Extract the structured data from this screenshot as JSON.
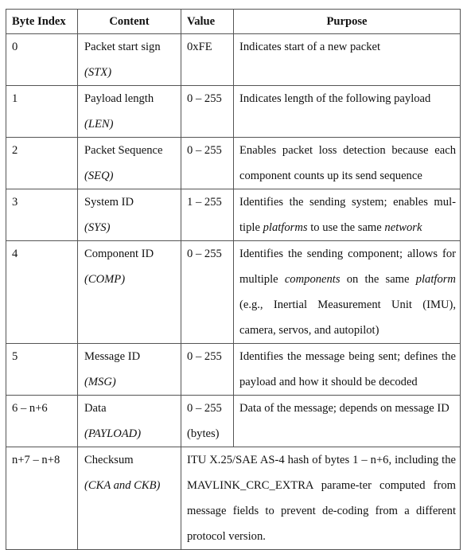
{
  "headers": {
    "byte_index": "Byte Index",
    "content": "Content",
    "value": "Value",
    "purpose": "Purpose"
  },
  "rows": [
    {
      "index": "0",
      "content": "Packet start sign",
      "abbr": "(STX)",
      "value": "0xFE",
      "value2": "",
      "purpose_parts": [
        "Indicates start of a new packet"
      ]
    },
    {
      "index": "1",
      "content": "Payload length",
      "abbr": "(LEN)",
      "value": "0 – 255",
      "value2": "",
      "purpose_parts": [
        "Indicates length of the following payload"
      ]
    },
    {
      "index": "2",
      "content": "Packet Sequence",
      "abbr": "(SEQ)",
      "value": "0 – 255",
      "value2": "",
      "purpose_parts": [
        "Enables packet loss detection because each component counts up its send sequence"
      ]
    },
    {
      "index": "3",
      "content": "System ID",
      "abbr": "(SYS)",
      "value": "1 – 255",
      "value2": "",
      "purpose_parts": [
        "Identifies the sending system; enables mul-tiple ",
        "platforms",
        " to use the same ",
        "network"
      ]
    },
    {
      "index": "4",
      "content": "Component ID",
      "abbr": "(COMP)",
      "value": "0 – 255",
      "value2": "",
      "purpose_parts": [
        "Identifies the sending component; allows for multiple ",
        "components",
        " on the same ",
        "platform",
        " (e.g., Inertial Measurement Unit (IMU), camera, servos, and autopilot)"
      ]
    },
    {
      "index": "5",
      "content": "Message ID",
      "abbr": "(MSG)",
      "value": "0 – 255",
      "value2": "",
      "purpose_parts": [
        "Identifies the message being sent; defines the payload and how it should be decoded"
      ]
    },
    {
      "index": "6 – n+6",
      "content": "Data",
      "abbr": "(PAYLOAD)",
      "value": "0 – 255",
      "value2": "(bytes)",
      "purpose_parts": [
        "Data of the message; depends on message ID"
      ]
    },
    {
      "index": "n+7 – n+8",
      "content": "Checksum",
      "abbr": "(CKA and CKB)",
      "value": "",
      "value2": "",
      "purpose_parts": [
        "ITU X.25/SAE AS-4 hash of bytes 1 – n+6, including the MAVLINK_CRC_EXTRA parame-ter computed from message fields to prevent de-coding from a different protocol version."
      ]
    }
  ]
}
